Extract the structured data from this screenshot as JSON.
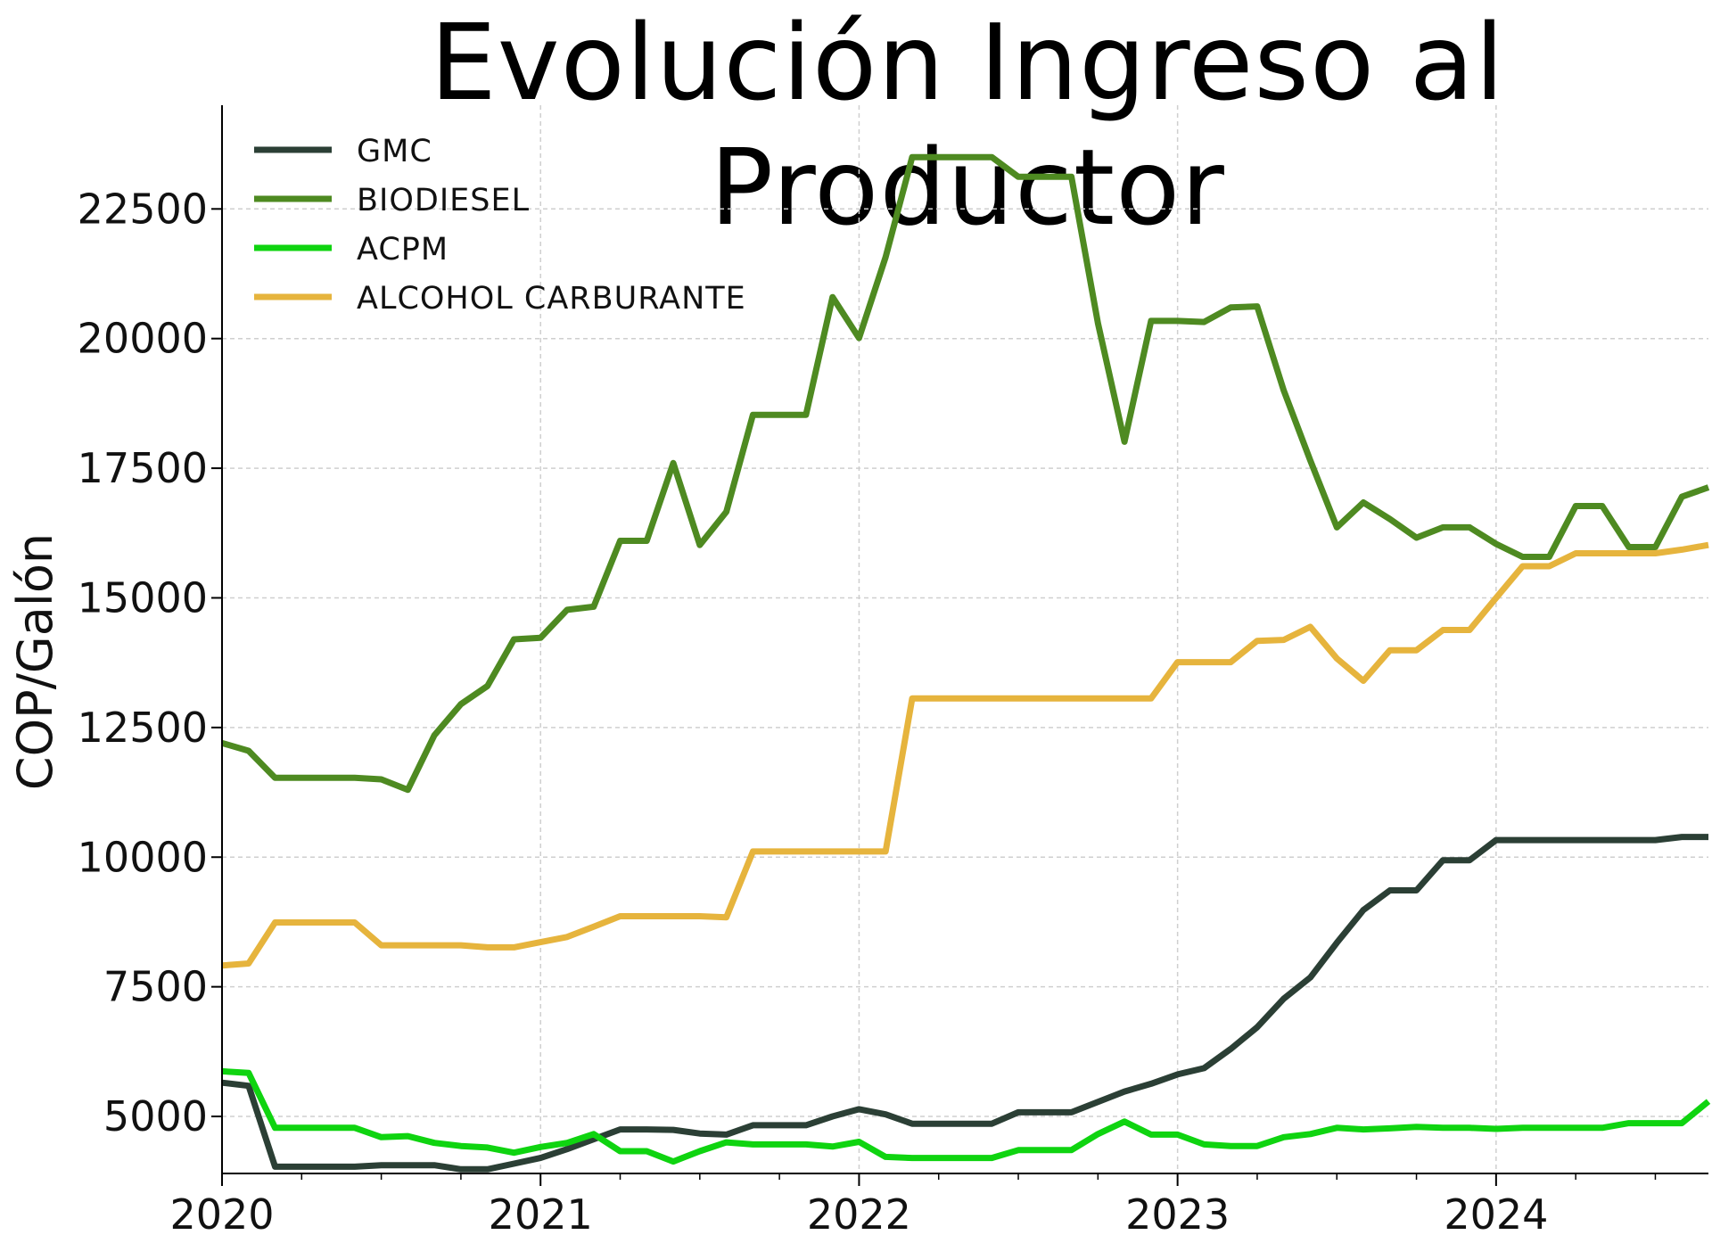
{
  "title": "Evolución Ingreso al Productor",
  "chart_data": {
    "type": "line",
    "title": "Evolución Ingreso al Productor",
    "xlabel": "",
    "ylabel": "COP/Galón",
    "x_start": "2020-01",
    "x_step": "month",
    "xlim": [
      "2020-01",
      "2024-09"
    ],
    "ylim": [
      3900,
      24500
    ],
    "y_ticks": [
      5000,
      7500,
      10000,
      12500,
      15000,
      17500,
      20000,
      22500
    ],
    "x_ticks": [
      "2020",
      "2021",
      "2022",
      "2023",
      "2024"
    ],
    "grid": true,
    "legend_position": "top-left",
    "series": [
      {
        "name": "GMC",
        "color": "#2b3f35",
        "values": [
          5650,
          5590,
          4030,
          4030,
          4030,
          4030,
          4060,
          4060,
          4060,
          3980,
          3980,
          4090,
          4200,
          4370,
          4560,
          4750,
          4750,
          4740,
          4670,
          4650,
          4830,
          4830,
          4830,
          5000,
          5140,
          5040,
          4860,
          4860,
          4860,
          4860,
          5080,
          5080,
          5080,
          5280,
          5480,
          5630,
          5810,
          5930,
          6300,
          6720,
          7270,
          7680,
          8350,
          8980,
          9360,
          9360,
          9940,
          9940,
          10330,
          10330,
          10330,
          10330,
          10330,
          10330,
          10330,
          10390,
          10390
        ]
      },
      {
        "name": "BIODIESEL",
        "color": "#4e8a21",
        "values": [
          12200,
          12050,
          11530,
          11530,
          11530,
          11530,
          11500,
          11300,
          12350,
          12950,
          13300,
          14200,
          14230,
          14770,
          14830,
          16100,
          16100,
          17600,
          16020,
          16660,
          18530,
          18530,
          18530,
          20800,
          20010,
          21570,
          23500,
          23500,
          23500,
          23500,
          23120,
          23120,
          23120,
          20300,
          18010,
          20340,
          20340,
          20320,
          20600,
          20620,
          19000,
          17650,
          16360,
          16840,
          16520,
          16160,
          16360,
          16360,
          16040,
          15790,
          15790,
          16770,
          16770,
          15980,
          15980,
          16950,
          17130
        ]
      },
      {
        "name": "ACPM",
        "color": "#0fd410",
        "values": [
          5870,
          5840,
          4780,
          4780,
          4780,
          4780,
          4600,
          4620,
          4490,
          4430,
          4400,
          4300,
          4410,
          4490,
          4660,
          4330,
          4330,
          4130,
          4330,
          4500,
          4460,
          4460,
          4460,
          4420,
          4510,
          4220,
          4200,
          4200,
          4200,
          4200,
          4350,
          4350,
          4350,
          4660,
          4900,
          4650,
          4650,
          4460,
          4430,
          4430,
          4600,
          4660,
          4780,
          4750,
          4770,
          4800,
          4780,
          4780,
          4760,
          4780,
          4780,
          4780,
          4780,
          4870,
          4870,
          4870,
          5290
        ]
      },
      {
        "name": "ALCOHOL CARBURANTE",
        "color": "#e6b43d",
        "values": [
          7910,
          7950,
          8740,
          8740,
          8740,
          8740,
          8300,
          8300,
          8300,
          8300,
          8260,
          8260,
          8360,
          8460,
          8660,
          8860,
          8860,
          8860,
          8860,
          8840,
          10110,
          10110,
          10110,
          10110,
          10110,
          10110,
          13060,
          13060,
          13060,
          13060,
          13060,
          13060,
          13060,
          13060,
          13060,
          13060,
          13760,
          13760,
          13760,
          14170,
          14190,
          14440,
          13830,
          13400,
          13990,
          13990,
          14380,
          14380,
          15000,
          15610,
          15610,
          15860,
          15860,
          15860,
          15860,
          15930,
          16020
        ]
      }
    ]
  }
}
